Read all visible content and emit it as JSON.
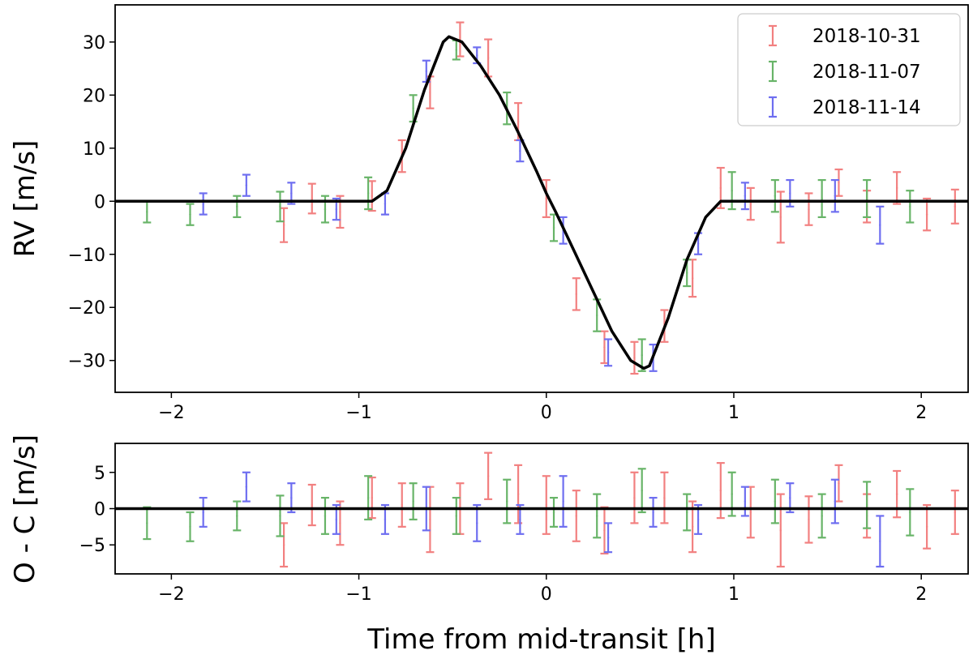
{
  "chart_data": [
    {
      "type": "scatter",
      "panel": "top",
      "xlabel": "",
      "ylabel": "RV [m/s]",
      "xlim": [
        -2.3,
        2.25
      ],
      "ylim": [
        -36,
        37
      ],
      "xticks": [
        -2,
        -1,
        0,
        1,
        2
      ],
      "xtick_labels": [
        "−2",
        "−1",
        "0",
        "1",
        "2"
      ],
      "yticks": [
        -30,
        -20,
        -10,
        0,
        10,
        20,
        30
      ],
      "ytick_labels": [
        "−30",
        "−20",
        "−10",
        "0",
        "10",
        "20",
        "30"
      ],
      "legend": {
        "position": "top-right",
        "entries": [
          "2018-10-31",
          "2018-11-07",
          "2018-11-14"
        ]
      },
      "series": [
        {
          "name": "2018-10-31",
          "color": "#f28080",
          "points": [
            {
              "x": -1.4,
              "y": -4.5,
              "err": 3.2
            },
            {
              "x": -1.25,
              "y": 0.5,
              "err": 2.8
            },
            {
              "x": -1.1,
              "y": -2.0,
              "err": 3.0
            },
            {
              "x": -0.93,
              "y": 1.0,
              "err": 2.8
            },
            {
              "x": -0.77,
              "y": 8.5,
              "err": 3.0
            },
            {
              "x": -0.62,
              "y": 20.5,
              "err": 3.0
            },
            {
              "x": -0.46,
              "y": 30.5,
              "err": 3.2
            },
            {
              "x": -0.31,
              "y": 27.0,
              "err": 3.5
            },
            {
              "x": -0.15,
              "y": 15.0,
              "err": 3.5
            },
            {
              "x": 0.0,
              "y": 0.5,
              "err": 3.5
            },
            {
              "x": 0.16,
              "y": -17.5,
              "err": 3.0
            },
            {
              "x": 0.31,
              "y": -27.5,
              "err": 3.0
            },
            {
              "x": 0.47,
              "y": -29.5,
              "err": 3.0
            },
            {
              "x": 0.63,
              "y": -23.5,
              "err": 3.0
            },
            {
              "x": 0.78,
              "y": -14.5,
              "err": 3.5
            },
            {
              "x": 0.93,
              "y": 2.5,
              "err": 3.8
            },
            {
              "x": 1.09,
              "y": -0.5,
              "err": 3.0
            },
            {
              "x": 1.25,
              "y": -3.0,
              "err": 4.8
            },
            {
              "x": 1.4,
              "y": -1.5,
              "err": 3.0
            },
            {
              "x": 1.56,
              "y": 3.5,
              "err": 2.5
            },
            {
              "x": 1.71,
              "y": -1.0,
              "err": 3.0
            },
            {
              "x": 1.87,
              "y": 2.5,
              "err": 3.0
            },
            {
              "x": 2.03,
              "y": -2.5,
              "err": 3.0
            },
            {
              "x": 2.18,
              "y": -1.0,
              "err": 3.2
            }
          ]
        },
        {
          "name": "2018-11-07",
          "color": "#68b468",
          "points": [
            {
              "x": -2.13,
              "y": -2.0,
              "err": 2.0
            },
            {
              "x": -1.9,
              "y": -2.5,
              "err": 2.0
            },
            {
              "x": -1.65,
              "y": -1.0,
              "err": 2.0
            },
            {
              "x": -1.42,
              "y": -1.0,
              "err": 2.8
            },
            {
              "x": -1.18,
              "y": -1.5,
              "err": 2.5
            },
            {
              "x": -0.95,
              "y": 1.5,
              "err": 3.0
            },
            {
              "x": -0.71,
              "y": 17.5,
              "err": 2.5
            },
            {
              "x": -0.48,
              "y": 28.5,
              "err": 1.8
            },
            {
              "x": -0.21,
              "y": 17.5,
              "err": 3.0
            },
            {
              "x": 0.04,
              "y": -5.0,
              "err": 2.5
            },
            {
              "x": 0.27,
              "y": -21.5,
              "err": 3.0
            },
            {
              "x": 0.51,
              "y": -29.0,
              "err": 3.0
            },
            {
              "x": 0.75,
              "y": -13.5,
              "err": 2.5
            },
            {
              "x": 0.99,
              "y": 2.0,
              "err": 3.5
            },
            {
              "x": 1.22,
              "y": 1.0,
              "err": 3.0
            },
            {
              "x": 1.47,
              "y": 0.5,
              "err": 3.5
            },
            {
              "x": 1.71,
              "y": 0.5,
              "err": 3.5
            },
            {
              "x": 1.94,
              "y": -1.0,
              "err": 3.0
            }
          ]
        },
        {
          "name": "2018-11-14",
          "color": "#6e6ef0",
          "points": [
            {
              "x": -1.83,
              "y": -0.5,
              "err": 2.0
            },
            {
              "x": -1.6,
              "y": 3.0,
              "err": 2.0
            },
            {
              "x": -1.36,
              "y": 1.5,
              "err": 2.0
            },
            {
              "x": -1.12,
              "y": -1.5,
              "err": 2.0
            },
            {
              "x": -0.86,
              "y": -0.5,
              "err": 2.0
            },
            {
              "x": -0.64,
              "y": 24.5,
              "err": 2.0
            },
            {
              "x": -0.37,
              "y": 27.5,
              "err": 1.5
            },
            {
              "x": -0.14,
              "y": 9.5,
              "err": 2.0
            },
            {
              "x": 0.09,
              "y": -5.5,
              "err": 2.5
            },
            {
              "x": 0.33,
              "y": -28.5,
              "err": 2.5
            },
            {
              "x": 0.57,
              "y": -29.5,
              "err": 2.5
            },
            {
              "x": 0.81,
              "y": -8.0,
              "err": 2.0
            },
            {
              "x": 1.06,
              "y": 1.0,
              "err": 2.5
            },
            {
              "x": 1.3,
              "y": 1.5,
              "err": 2.5
            },
            {
              "x": 1.54,
              "y": 1.0,
              "err": 3.0
            },
            {
              "x": 1.78,
              "y": -4.5,
              "err": 3.5
            }
          ]
        }
      ],
      "model": {
        "name": "",
        "color": "#000000",
        "x": [
          -2.3,
          -0.93,
          -0.85,
          -0.75,
          -0.65,
          -0.55,
          -0.52,
          -0.45,
          -0.35,
          -0.25,
          -0.15,
          -0.05,
          0.0,
          0.05,
          0.15,
          0.25,
          0.35,
          0.45,
          0.52,
          0.55,
          0.65,
          0.75,
          0.85,
          0.93,
          2.25
        ],
        "y": [
          0,
          0,
          2,
          10,
          21,
          30,
          31,
          30,
          25.5,
          20,
          13,
          5.5,
          1.5,
          -2,
          -9.5,
          -17,
          -24.5,
          -30,
          -31.5,
          -31,
          -22,
          -11,
          -3,
          0,
          0
        ]
      }
    },
    {
      "type": "scatter",
      "panel": "bottom",
      "xlabel": "Time from mid-transit [h]",
      "ylabel": "O - C [m/s]",
      "xlim": [
        -2.3,
        2.25
      ],
      "ylim": [
        -9,
        9
      ],
      "xticks": [
        -2,
        -1,
        0,
        1,
        2
      ],
      "xtick_labels": [
        "−2",
        "−1",
        "0",
        "1",
        "2"
      ],
      "yticks": [
        -5,
        0,
        5
      ],
      "ytick_labels": [
        "−5",
        "0",
        "5"
      ],
      "series": [
        {
          "name": "2018-10-31",
          "color": "#f28080",
          "points": [
            {
              "x": -1.4,
              "y": -5.0,
              "err": 3.0
            },
            {
              "x": -1.25,
              "y": 0.5,
              "err": 2.8
            },
            {
              "x": -1.1,
              "y": -2.0,
              "err": 3.0
            },
            {
              "x": -0.93,
              "y": 1.5,
              "err": 2.8
            },
            {
              "x": -0.77,
              "y": 0.5,
              "err": 3.0
            },
            {
              "x": -0.62,
              "y": -1.5,
              "err": 4.5
            },
            {
              "x": -0.46,
              "y": 0.0,
              "err": 3.5
            },
            {
              "x": -0.31,
              "y": 4.5,
              "err": 3.2
            },
            {
              "x": -0.15,
              "y": 2.0,
              "err": 4.0
            },
            {
              "x": 0.0,
              "y": 0.5,
              "err": 4.0
            },
            {
              "x": 0.16,
              "y": -1.0,
              "err": 3.5
            },
            {
              "x": 0.31,
              "y": -3.0,
              "err": 3.2
            },
            {
              "x": 0.47,
              "y": 1.5,
              "err": 3.5
            },
            {
              "x": 0.63,
              "y": 1.5,
              "err": 3.5
            },
            {
              "x": 0.78,
              "y": -2.5,
              "err": 3.5
            },
            {
              "x": 0.93,
              "y": 2.5,
              "err": 3.8
            },
            {
              "x": 1.09,
              "y": -0.5,
              "err": 3.5
            },
            {
              "x": 1.25,
              "y": -3.0,
              "err": 5.0
            },
            {
              "x": 1.4,
              "y": -1.5,
              "err": 3.2
            },
            {
              "x": 1.56,
              "y": 3.5,
              "err": 2.5
            },
            {
              "x": 1.71,
              "y": -1.0,
              "err": 3.0
            },
            {
              "x": 1.87,
              "y": 2.0,
              "err": 3.2
            },
            {
              "x": 2.03,
              "y": -2.5,
              "err": 3.0
            },
            {
              "x": 2.18,
              "y": -0.5,
              "err": 3.0
            }
          ]
        },
        {
          "name": "2018-11-07",
          "color": "#68b468",
          "points": [
            {
              "x": -2.13,
              "y": -2.0,
              "err": 2.2
            },
            {
              "x": -1.9,
              "y": -2.5,
              "err": 2.0
            },
            {
              "x": -1.65,
              "y": -1.0,
              "err": 2.0
            },
            {
              "x": -1.42,
              "y": -1.0,
              "err": 2.8
            },
            {
              "x": -1.18,
              "y": -1.0,
              "err": 2.5
            },
            {
              "x": -0.95,
              "y": 1.5,
              "err": 3.0
            },
            {
              "x": -0.71,
              "y": 1.0,
              "err": 2.5
            },
            {
              "x": -0.48,
              "y": -1.0,
              "err": 2.5
            },
            {
              "x": -0.21,
              "y": 1.0,
              "err": 3.0
            },
            {
              "x": 0.04,
              "y": -0.5,
              "err": 2.0
            },
            {
              "x": 0.27,
              "y": -1.0,
              "err": 3.0
            },
            {
              "x": 0.51,
              "y": 2.5,
              "err": 3.0
            },
            {
              "x": 0.75,
              "y": -0.5,
              "err": 2.5
            },
            {
              "x": 0.99,
              "y": 2.0,
              "err": 3.0
            },
            {
              "x": 1.22,
              "y": 1.0,
              "err": 3.0
            },
            {
              "x": 1.47,
              "y": -1.0,
              "err": 3.0
            },
            {
              "x": 1.71,
              "y": 0.5,
              "err": 3.2
            },
            {
              "x": 1.94,
              "y": -0.5,
              "err": 3.2
            }
          ]
        },
        {
          "name": "2018-11-14",
          "color": "#6e6ef0",
          "points": [
            {
              "x": -1.83,
              "y": -0.5,
              "err": 2.0
            },
            {
              "x": -1.6,
              "y": 3.0,
              "err": 2.0
            },
            {
              "x": -1.36,
              "y": 1.5,
              "err": 2.0
            },
            {
              "x": -1.12,
              "y": -1.5,
              "err": 2.0
            },
            {
              "x": -0.86,
              "y": -1.5,
              "err": 2.0
            },
            {
              "x": -0.64,
              "y": 0.0,
              "err": 3.0
            },
            {
              "x": -0.37,
              "y": -2.0,
              "err": 2.5
            },
            {
              "x": -0.14,
              "y": -1.5,
              "err": 2.0
            },
            {
              "x": 0.09,
              "y": 1.0,
              "err": 3.5
            },
            {
              "x": 0.33,
              "y": -4.0,
              "err": 2.0
            },
            {
              "x": 0.57,
              "y": -0.5,
              "err": 2.0
            },
            {
              "x": 0.81,
              "y": -1.5,
              "err": 2.0
            },
            {
              "x": 1.06,
              "y": 1.0,
              "err": 2.0
            },
            {
              "x": 1.3,
              "y": 1.5,
              "err": 2.0
            },
            {
              "x": 1.54,
              "y": 1.0,
              "err": 3.0
            },
            {
              "x": 1.78,
              "y": -4.5,
              "err": 3.5
            }
          ]
        }
      ],
      "model": {
        "name": "",
        "color": "#000000",
        "x": [
          -2.3,
          2.25
        ],
        "y": [
          0,
          0
        ]
      }
    }
  ]
}
